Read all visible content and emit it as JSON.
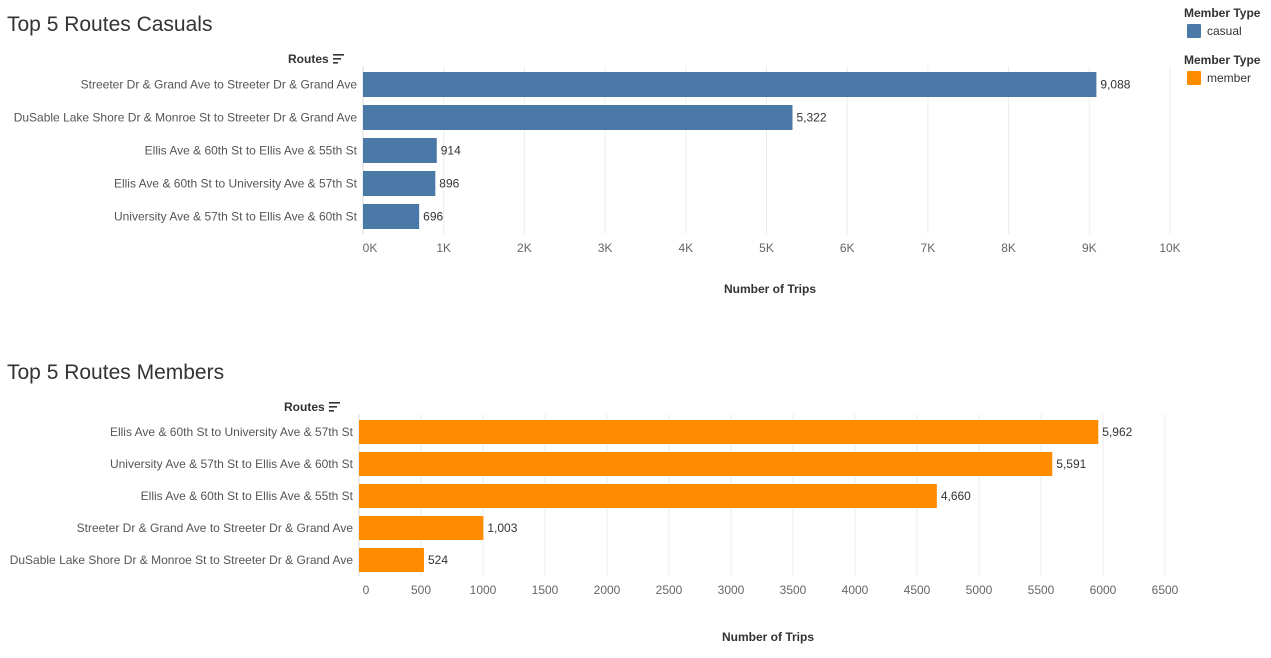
{
  "legend": [
    {
      "title": "Member Type",
      "label": "casual",
      "color": "#4a79a7"
    },
    {
      "title": "Member Type",
      "label": "member",
      "color": "#ff8c00"
    }
  ],
  "chart_data": [
    {
      "type": "bar",
      "orientation": "horizontal",
      "title": "Top 5 Routes Casuals",
      "row_header": "Routes",
      "xlabel": "Number of Trips",
      "categories": [
        "Streeter Dr & Grand Ave to Streeter Dr & Grand Ave",
        "DuSable Lake Shore Dr & Monroe St to Streeter Dr & Grand Ave",
        "Ellis Ave & 60th St to Ellis Ave & 55th St",
        "Ellis Ave & 60th St to University Ave & 57th St",
        "University Ave & 57th St to Ellis Ave & 60th St"
      ],
      "values": [
        9088,
        5322,
        914,
        896,
        696
      ],
      "value_labels": [
        "9,088",
        "5,322",
        "914",
        "896",
        "696"
      ],
      "xlim": [
        0,
        10000
      ],
      "xticks": [
        0,
        1000,
        2000,
        3000,
        4000,
        5000,
        6000,
        7000,
        8000,
        9000,
        10000
      ],
      "xtick_labels": [
        "0K",
        "1K",
        "2K",
        "3K",
        "4K",
        "5K",
        "6K",
        "7K",
        "8K",
        "9K",
        "10K"
      ],
      "color": "#4a79a7",
      "grid": true
    },
    {
      "type": "bar",
      "orientation": "horizontal",
      "title": "Top 5 Routes Members",
      "row_header": "Routes",
      "xlabel": "Number of Trips",
      "categories": [
        "Ellis Ave & 60th St to University Ave & 57th St",
        "University Ave & 57th St to Ellis Ave & 60th St",
        "Ellis Ave & 60th St to Ellis Ave & 55th St",
        "Streeter Dr & Grand Ave to Streeter Dr & Grand Ave",
        "DuSable Lake Shore Dr & Monroe St to Streeter Dr & Grand Ave"
      ],
      "values": [
        5962,
        5591,
        4660,
        1003,
        524
      ],
      "value_labels": [
        "5,962",
        "5,591",
        "4,660",
        "1,003",
        "524"
      ],
      "xlim": [
        0,
        6500
      ],
      "xticks": [
        0,
        500,
        1000,
        1500,
        2000,
        2500,
        3000,
        3500,
        4000,
        4500,
        5000,
        5500,
        6000,
        6500
      ],
      "xtick_labels": [
        "0",
        "500",
        "1000",
        "1500",
        "2000",
        "2500",
        "3000",
        "3500",
        "4000",
        "4500",
        "5000",
        "5500",
        "6000",
        "6500"
      ],
      "color": "#ff8c00",
      "grid": true
    }
  ]
}
